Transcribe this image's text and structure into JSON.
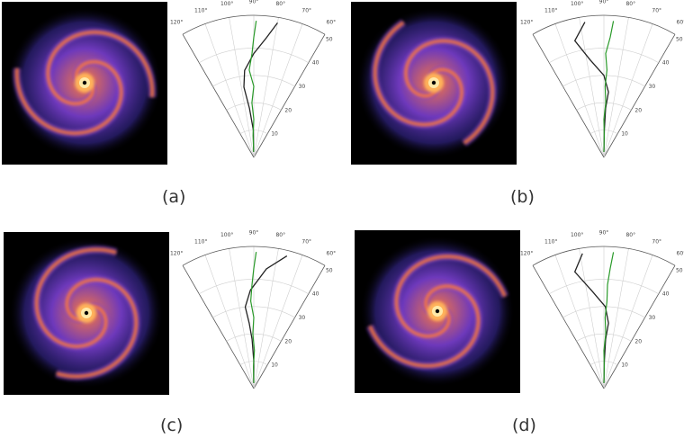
{
  "figure": {
    "panels": [
      {
        "caption": "(a)",
        "angle_ticks": [
          "120°",
          "110°",
          "100°",
          "90°",
          "80°",
          "70°",
          "60°"
        ],
        "radius_ticks": [
          "10",
          "20",
          "30",
          "40",
          "50"
        ],
        "spiral_colors": {
          "core": "#ffe9a8",
          "arm": "#ff7a3a",
          "outer": "#7a3fd0",
          "halo": "#3a2a9a"
        }
      },
      {
        "caption": "(b)",
        "angle_ticks": [
          "120°",
          "110°",
          "100°",
          "90°",
          "80°",
          "70°",
          "60°"
        ],
        "radius_ticks": [
          "10",
          "20",
          "30",
          "40",
          "50"
        ],
        "spiral_colors": {
          "core": "#ffe9a8",
          "arm": "#ff7a3a",
          "outer": "#7a3fd0",
          "halo": "#3a2a9a"
        }
      },
      {
        "caption": "(c)",
        "angle_ticks": [
          "120°",
          "110°",
          "100°",
          "90°",
          "80°",
          "70°",
          "60°"
        ],
        "radius_ticks": [
          "10",
          "20",
          "30",
          "40",
          "50"
        ],
        "spiral_colors": {
          "core": "#ffe9a8",
          "arm": "#ff7a3a",
          "outer": "#7a3fd0",
          "halo": "#3a2a9a"
        }
      },
      {
        "caption": "(d)",
        "angle_ticks": [
          "120°",
          "110°",
          "100°",
          "90°",
          "80°",
          "70°",
          "60°"
        ],
        "radius_ticks": [
          "10",
          "20",
          "30",
          "40",
          "50"
        ],
        "spiral_colors": {
          "core": "#ffe9a8",
          "arm": "#ff7a3a",
          "outer": "#7a3fd0",
          "halo": "#3a2a9a"
        }
      }
    ],
    "curves": [
      {
        "panel": 0,
        "black": [
          [
            2,
            92
          ],
          [
            10,
            91
          ],
          [
            18,
            95
          ],
          [
            26,
            98
          ],
          [
            32,
            96
          ],
          [
            38,
            90
          ],
          [
            44,
            84
          ],
          [
            50,
            80
          ]
        ],
        "green": [
          [
            2,
            91
          ],
          [
            8,
            92
          ],
          [
            14,
            90
          ],
          [
            20,
            92
          ],
          [
            26,
            90
          ],
          [
            32,
            93
          ],
          [
            38,
            91
          ],
          [
            44,
            90
          ],
          [
            50,
            89
          ]
        ]
      },
      {
        "panel": 1,
        "black": [
          [
            2,
            90
          ],
          [
            10,
            89
          ],
          [
            18,
            88
          ],
          [
            24,
            86
          ],
          [
            30,
            90
          ],
          [
            36,
            98
          ],
          [
            44,
            104
          ],
          [
            50,
            98
          ]
        ],
        "green": [
          [
            2,
            90
          ],
          [
            8,
            89
          ],
          [
            14,
            90
          ],
          [
            20,
            88
          ],
          [
            26,
            89
          ],
          [
            32,
            88
          ],
          [
            38,
            89
          ],
          [
            44,
            87
          ],
          [
            50,
            86
          ]
        ]
      },
      {
        "panel": 2,
        "black": [
          [
            2,
            91
          ],
          [
            10,
            90
          ],
          [
            18,
            92
          ],
          [
            24,
            94
          ],
          [
            30,
            96
          ],
          [
            36,
            92
          ],
          [
            44,
            84
          ],
          [
            50,
            76
          ]
        ],
        "green": [
          [
            2,
            90
          ],
          [
            8,
            91
          ],
          [
            14,
            89
          ],
          [
            20,
            91
          ],
          [
            26,
            90
          ],
          [
            32,
            92
          ],
          [
            38,
            91
          ],
          [
            44,
            90
          ],
          [
            50,
            89
          ]
        ]
      },
      {
        "panel": 3,
        "black": [
          [
            2,
            90
          ],
          [
            10,
            89
          ],
          [
            18,
            88
          ],
          [
            24,
            86
          ],
          [
            30,
            89
          ],
          [
            36,
            97
          ],
          [
            44,
            104
          ],
          [
            50,
            99
          ]
        ],
        "green": [
          [
            2,
            90
          ],
          [
            8,
            89
          ],
          [
            14,
            90
          ],
          [
            20,
            88
          ],
          [
            26,
            89
          ],
          [
            32,
            88
          ],
          [
            38,
            88
          ],
          [
            44,
            87
          ],
          [
            50,
            86
          ]
        ]
      }
    ]
  }
}
